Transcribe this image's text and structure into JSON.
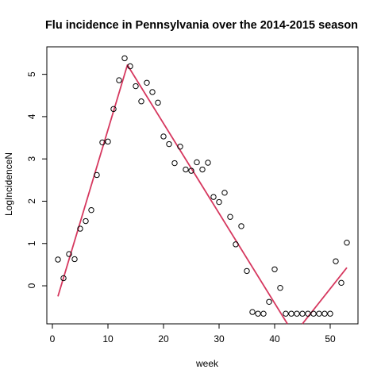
{
  "chart_data": {
    "type": "scatter",
    "title": "Flu incidence in Pennsylvania over the 2014-2015 season",
    "xlabel": "week",
    "ylabel": "LogIncidenceN",
    "xlim": [
      -1,
      55
    ],
    "ylim": [
      -0.9,
      5.65
    ],
    "xticks": [
      0,
      10,
      20,
      30,
      40,
      50
    ],
    "yticks": [
      0,
      1,
      2,
      3,
      4,
      5
    ],
    "grid": false,
    "point_color": "#000000",
    "line_color": "#d6385f",
    "points": [
      [
        1,
        0.62
      ],
      [
        2,
        0.18
      ],
      [
        3,
        0.75
      ],
      [
        4,
        0.63
      ],
      [
        5,
        1.35
      ],
      [
        6,
        1.53
      ],
      [
        7,
        1.79
      ],
      [
        8,
        2.62
      ],
      [
        9,
        3.39
      ],
      [
        10,
        3.41
      ],
      [
        11,
        4.18
      ],
      [
        12,
        4.86
      ],
      [
        13,
        5.38
      ],
      [
        14,
        5.19
      ],
      [
        15,
        4.72
      ],
      [
        16,
        4.36
      ],
      [
        17,
        4.8
      ],
      [
        18,
        4.58
      ],
      [
        19,
        4.33
      ],
      [
        20,
        3.53
      ],
      [
        21,
        3.35
      ],
      [
        22,
        2.9
      ],
      [
        23,
        3.29
      ],
      [
        24,
        2.75
      ],
      [
        25,
        2.72
      ],
      [
        26,
        2.92
      ],
      [
        27,
        2.75
      ],
      [
        28,
        2.91
      ],
      [
        29,
        2.1
      ],
      [
        30,
        1.98
      ],
      [
        31,
        2.2
      ],
      [
        32,
        1.63
      ],
      [
        33,
        0.98
      ],
      [
        34,
        1.41
      ],
      [
        35,
        0.35
      ],
      [
        36,
        -0.62
      ],
      [
        37,
        -0.66
      ],
      [
        38,
        -0.66
      ],
      [
        39,
        -0.38
      ],
      [
        40,
        0.39
      ],
      [
        41,
        -0.05
      ],
      [
        42,
        -0.66
      ],
      [
        43,
        -0.66
      ],
      [
        44,
        -0.66
      ],
      [
        45,
        -0.66
      ],
      [
        46,
        -0.66
      ],
      [
        47,
        -0.66
      ],
      [
        48,
        -0.66
      ],
      [
        49,
        -0.66
      ],
      [
        50,
        -0.66
      ],
      [
        51,
        0.58
      ],
      [
        52,
        0.07
      ],
      [
        53,
        1.02
      ]
    ],
    "fit_line": [
      [
        1,
        -0.25
      ],
      [
        13.5,
        5.22
      ],
      [
        42.3,
        -0.9
      ]
    ],
    "fit_line_2": [
      [
        45,
        -0.9
      ],
      [
        53,
        0.43
      ]
    ]
  }
}
